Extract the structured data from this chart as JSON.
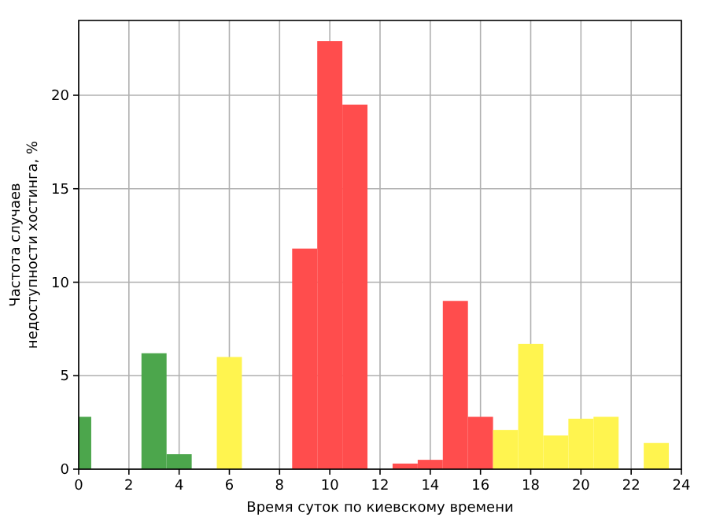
{
  "chart_data": {
    "type": "histogram",
    "xlabel": "Время суток по киевскому времени",
    "ylabel": "Частота случаев\nнедоступности хостинга, %",
    "bins": [
      0,
      0.5,
      2.5,
      3.5,
      4.5,
      5.5,
      6.5,
      8.5,
      9.5,
      10.5,
      11.5,
      12.5,
      13.5,
      14.5,
      15.5,
      16.5,
      17.5,
      18.5,
      19.5,
      20.5,
      21.5,
      22.5,
      23.5
    ],
    "values": [
      2.8,
      0,
      6.2,
      0.8,
      0,
      6.0,
      0,
      11.8,
      22.9,
      19.5,
      0,
      0.3,
      0.5,
      9.0,
      2.8,
      2.1,
      6.7,
      1.8,
      2.7,
      2.8,
      0,
      1.4
    ],
    "colors": [
      "#4ca64c",
      "#4ca64c",
      "#4ca64c",
      "#4ca64c",
      "#fff44f",
      "#fff44f",
      "#fff44f",
      "#ff4d4d",
      "#ff4d4d",
      "#ff4d4d",
      "#ff4d4d",
      "#ff4d4d",
      "#ff4d4d",
      "#ff4d4d",
      "#ff4d4d",
      "#fff44f",
      "#fff44f",
      "#fff44f",
      "#fff44f",
      "#fff44f",
      "#fff44f",
      "#fff44f"
    ],
    "xlim": [
      0,
      24
    ],
    "xticks": [
      0,
      2,
      4,
      6,
      8,
      10,
      12,
      14,
      16,
      18,
      20,
      22,
      24
    ],
    "ylim": [
      0,
      24
    ],
    "yticks": [
      0,
      5,
      10,
      15,
      20
    ],
    "grid": true
  }
}
